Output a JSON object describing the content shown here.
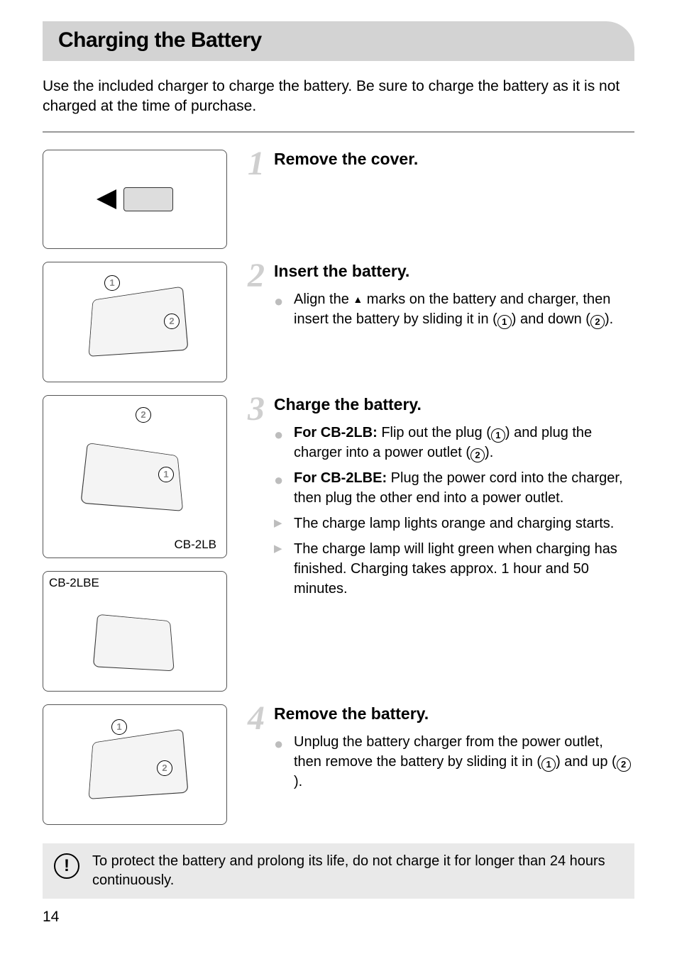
{
  "title": "Charging the Battery",
  "intro": "Use the included charger to charge the battery. Be sure to charge the battery as it is not charged at the time of purchase.",
  "steps": [
    {
      "num": "1",
      "title": "Remove the cover.",
      "bullets": []
    },
    {
      "num": "2",
      "title": "Insert the battery.",
      "callouts": [
        "1",
        "2"
      ],
      "bullets": [
        {
          "marker": "circle",
          "parts": [
            {
              "t": "text",
              "v": "Align the "
            },
            {
              "t": "upmark"
            },
            {
              "t": "text",
              "v": " marks on the battery and charger, then insert the battery by sliding it in ("
            },
            {
              "t": "circnum",
              "v": "1"
            },
            {
              "t": "text",
              "v": ") and down ("
            },
            {
              "t": "circnum",
              "v": "2"
            },
            {
              "t": "text",
              "v": ")."
            }
          ]
        }
      ]
    },
    {
      "num": "3",
      "title": "Charge the battery.",
      "images": [
        {
          "label_bottom": "CB-2LB",
          "callouts": [
            "2",
            "1"
          ]
        },
        {
          "label_top": "CB-2LBE"
        }
      ],
      "bullets": [
        {
          "marker": "circle",
          "parts": [
            {
              "t": "bold",
              "v": "For CB-2LB:"
            },
            {
              "t": "text",
              "v": " Flip out the plug ("
            },
            {
              "t": "circnum",
              "v": "1"
            },
            {
              "t": "text",
              "v": ") and plug the charger into a power outlet ("
            },
            {
              "t": "circnum",
              "v": "2"
            },
            {
              "t": "text",
              "v": ")."
            }
          ]
        },
        {
          "marker": "circle",
          "parts": [
            {
              "t": "bold",
              "v": "For CB-2LBE:"
            },
            {
              "t": "text",
              "v": " Plug the power cord into the charger, then plug the other end into a power outlet."
            }
          ]
        },
        {
          "marker": "tri",
          "parts": [
            {
              "t": "text",
              "v": "The charge lamp lights orange and charging starts."
            }
          ]
        },
        {
          "marker": "tri",
          "parts": [
            {
              "t": "text",
              "v": "The charge lamp will light green when charging has finished. Charging takes approx. 1 hour and 50 minutes."
            }
          ]
        }
      ]
    },
    {
      "num": "4",
      "title": "Remove the battery.",
      "callouts": [
        "1",
        "2"
      ],
      "bullets": [
        {
          "marker": "circle",
          "parts": [
            {
              "t": "text",
              "v": "Unplug the battery charger from the power outlet, then remove the battery by sliding it in ("
            },
            {
              "t": "circnum",
              "v": "1"
            },
            {
              "t": "text",
              "v": ") and up ("
            },
            {
              "t": "circnum",
              "v": "2"
            },
            {
              "t": "text",
              "v": ")."
            }
          ]
        }
      ]
    }
  ],
  "warning": "To protect the battery and prolong its life, do not charge it for longer than 24 hours continuously.",
  "warning_icon": "!",
  "page_number": "14",
  "colors": {
    "title_bg": "#d3d3d3",
    "step_num": "#cfcfcf",
    "marker": "#bdbdbd",
    "warning_bg": "#e9e9e9",
    "hr": "#999999"
  }
}
